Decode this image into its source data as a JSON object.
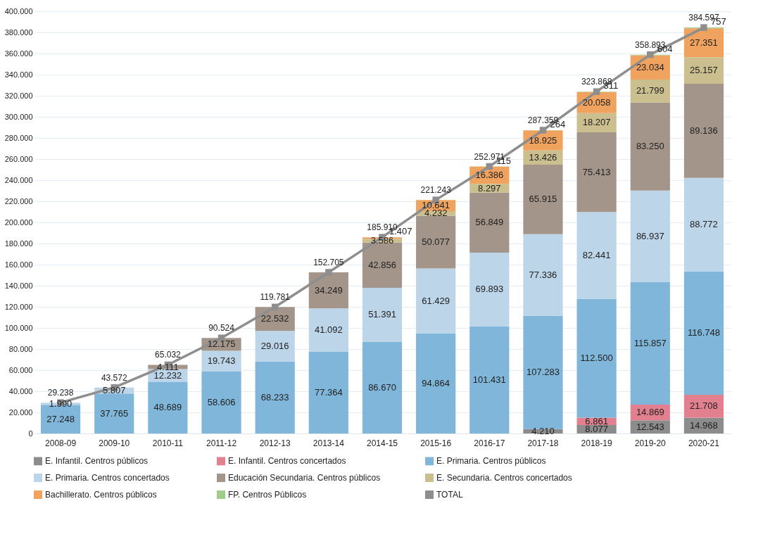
{
  "chart_data": {
    "type": "bar",
    "stacked": true,
    "categories": [
      "2008-09",
      "2009-10",
      "2010-11",
      "2011-12",
      "2012-13",
      "2013-14",
      "2014-15",
      "2015-16",
      "2016-17",
      "2017-18",
      "2018-19",
      "2019-20",
      "2020-21"
    ],
    "ylim": [
      0,
      400000
    ],
    "yticks": [
      {
        "value": 0,
        "label": "0"
      },
      {
        "value": 20000,
        "label": "20.000"
      },
      {
        "value": 40000,
        "label": "40.000"
      },
      {
        "value": 60000,
        "label": "60.000"
      },
      {
        "value": 80000,
        "label": "80.000"
      },
      {
        "value": 100000,
        "label": "100.000"
      },
      {
        "value": 120000,
        "label": "120.000"
      },
      {
        "value": 140000,
        "label": "140.000"
      },
      {
        "value": 160000,
        "label": "160.000"
      },
      {
        "value": 180000,
        "label": "180.000"
      },
      {
        "value": 200000,
        "label": "200.000"
      },
      {
        "value": 220000,
        "label": "220.000"
      },
      {
        "value": 240000,
        "label": "240.000"
      },
      {
        "value": 260000,
        "label": "260.000"
      },
      {
        "value": 280000,
        "label": "280.000"
      },
      {
        "value": 300000,
        "label": "300.000"
      },
      {
        "value": 320000,
        "label": "320.000"
      },
      {
        "value": 340000,
        "label": "340.000"
      },
      {
        "value": 360000,
        "label": "360.000"
      },
      {
        "value": 380000,
        "label": "380.000"
      },
      {
        "value": 400000,
        "label": "400.000"
      }
    ],
    "grid": "y",
    "legend": "bottom",
    "series": [
      {
        "name": "E. Infantil. Centros públicos",
        "color": "#8c8c8c",
        "values": [
          null,
          null,
          null,
          null,
          null,
          null,
          null,
          null,
          null,
          4210,
          8077,
          12543,
          14968
        ],
        "value_labels": [
          null,
          null,
          null,
          null,
          null,
          null,
          null,
          null,
          null,
          "4.210",
          "8.077",
          "12.543",
          "14.968"
        ]
      },
      {
        "name": "E. Infantil. Centros concertados",
        "color": "#e3808f",
        "values": [
          null,
          null,
          null,
          null,
          null,
          null,
          null,
          null,
          null,
          null,
          6861,
          14869,
          21708
        ],
        "value_labels": [
          null,
          null,
          null,
          null,
          null,
          null,
          null,
          null,
          null,
          null,
          "6.861",
          "14.869",
          "21.708"
        ]
      },
      {
        "name": "E. Primaria. Centros públicos",
        "color": "#80b6d9",
        "values": [
          27248,
          37765,
          48689,
          58606,
          68233,
          77364,
          86670,
          94864,
          101431,
          107283,
          112500,
          115857,
          116748
        ],
        "value_labels": [
          "27.248",
          "37.765",
          "48.689",
          "58.606",
          "68.233",
          "77.364",
          "86.670",
          "94.864",
          "101.431",
          "107.283",
          "112.500",
          "115.857",
          "116.748"
        ]
      },
      {
        "name": "E. Primaria. Centros  concertados",
        "color": "#bcd5e9",
        "values": [
          1990,
          5807,
          12232,
          19743,
          29016,
          41092,
          51391,
          61429,
          69893,
          77336,
          82441,
          86937,
          88772
        ],
        "value_labels": [
          "1.990",
          "5.807",
          "12.232",
          "19.743",
          "29.016",
          "41.092",
          "51.391",
          "61.429",
          "69.893",
          "77.336",
          "82.441",
          "86.937",
          "88.772"
        ]
      },
      {
        "name": "Educación Secundaria. Centros públicos",
        "color": "#a39589",
        "values": [
          null,
          null,
          4111,
          12175,
          22532,
          34249,
          42856,
          50077,
          56849,
          65915,
          75413,
          83250,
          89136
        ],
        "value_labels": [
          null,
          null,
          "4.111",
          "12.175",
          "22.532",
          "34.249",
          "42.856",
          "50.077",
          "56.849",
          "65.915",
          "75.413",
          "83.250",
          "89.136"
        ]
      },
      {
        "name": "E. Secundaria. Centros concertados",
        "color": "#cbbf8f",
        "values": [
          null,
          null,
          null,
          null,
          null,
          null,
          3586,
          4232,
          8297,
          13426,
          18207,
          21799,
          25157
        ],
        "value_labels": [
          null,
          null,
          null,
          null,
          null,
          null,
          "3.586",
          "4.232",
          "8.297",
          "13.426",
          "18.207",
          "21.799",
          "25.157"
        ]
      },
      {
        "name": "Bachillerato. Centros públicos",
        "color": "#f0a35e",
        "values": [
          null,
          null,
          null,
          null,
          null,
          null,
          1407,
          10641,
          16386,
          18925,
          20058,
          23034,
          27351
        ],
        "value_labels": [
          null,
          null,
          null,
          null,
          null,
          null,
          "1.407",
          "10.641",
          "16.386",
          "18.925",
          "20.058",
          "23.034",
          "27.351"
        ]
      },
      {
        "name": "FP. Centros Públicos",
        "color": "#a0cc8c",
        "values": [
          null,
          null,
          null,
          null,
          null,
          null,
          null,
          null,
          115,
          264,
          311,
          604,
          757
        ],
        "value_labels": [
          null,
          null,
          null,
          null,
          null,
          null,
          null,
          null,
          "115",
          "264",
          "311",
          "604",
          "757"
        ]
      },
      {
        "name": "TOTAL",
        "type": "line",
        "color": "#8e8e8e",
        "marker": "square",
        "values": [
          29238,
          43572,
          65032,
          90524,
          119781,
          152705,
          185910,
          221243,
          252971,
          287359,
          323868,
          358893,
          384597
        ],
        "value_labels": [
          "29.238",
          "43.572",
          "65.032",
          "90.524",
          "119.781",
          "152.705",
          "185.910",
          "221.243",
          "252.971",
          "287.359",
          "323.868",
          "358.893",
          "384.597"
        ]
      }
    ]
  }
}
